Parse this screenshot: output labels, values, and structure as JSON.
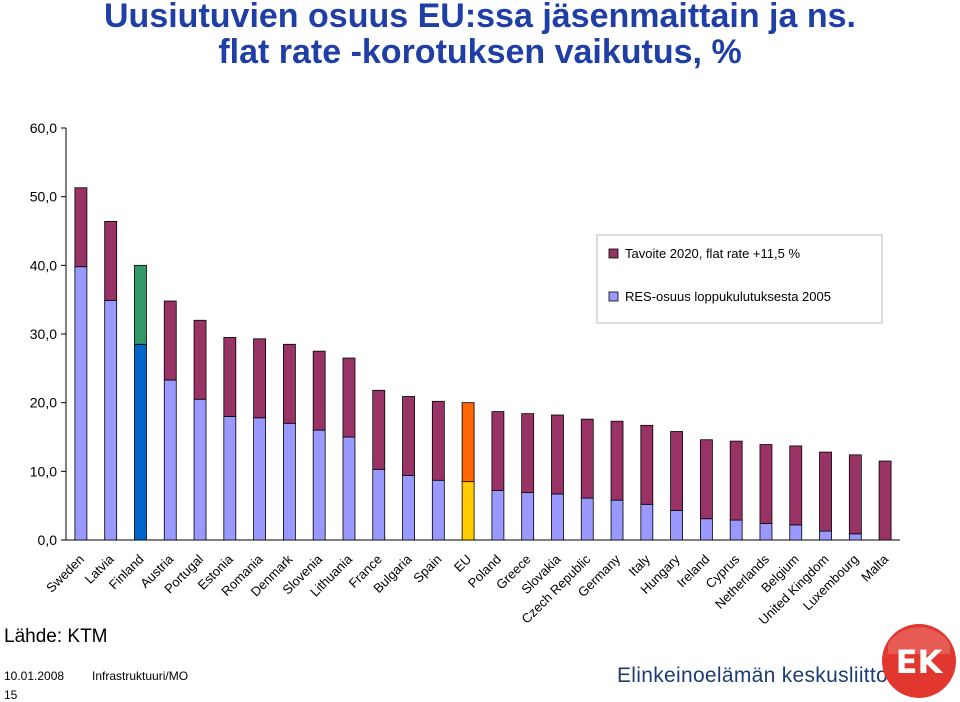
{
  "slide": {
    "title_line1": "Uusiutuvien osuus EU:ssa jäsenmaittain ja ns.",
    "title_line2": "flat rate -korotuksen vaikutus, %",
    "source": "Lähde: KTM",
    "date": "10.01.2008",
    "department": "Infrastruktuuri/MO",
    "page_number": "15",
    "logo_text": "Elinkeinoelämän keskusliitto",
    "logo_mark": "EK"
  },
  "colors": {
    "title": "#1f3fa6",
    "base": "#9999ff",
    "increase": "#993366",
    "finland_base": "#0066cc",
    "finland_increase": "#339966",
    "eu_base": "#ffcc00",
    "eu_increase": "#ff6600",
    "logo_red": "#e1372e",
    "logo_blue": "#1d3b73"
  },
  "chart_data": {
    "type": "bar",
    "stacked": true,
    "title": "Uusiutuvien osuus EU:ssa jäsenmaittain ja ns. flat rate -korotuksen vaikutus, %",
    "categories": [
      "Sweden",
      "Latvia",
      "Finland",
      "Austria",
      "Portugal",
      "Estonia",
      "Romania",
      "Denmark",
      "Slovenia",
      "Lithuania",
      "France",
      "Bulgaria",
      "Spain",
      "EU",
      "Poland",
      "Greece",
      "Slovakia",
      "Czech Republic",
      "Germany",
      "Italy",
      "Hungary",
      "Ireland",
      "Cyprus",
      "Netherlands",
      "Belgium",
      "United Kingdom",
      "Luxembourg",
      "Malta"
    ],
    "series": [
      {
        "name": "RES-osuus loppukulutuksesta 2005",
        "values": [
          39.8,
          34.9,
          28.5,
          23.3,
          20.5,
          18.0,
          17.8,
          17.0,
          16.0,
          15.0,
          10.3,
          9.4,
          8.7,
          8.5,
          7.2,
          6.9,
          6.7,
          6.1,
          5.8,
          5.2,
          4.3,
          3.1,
          2.9,
          2.4,
          2.2,
          1.3,
          0.9,
          0.0
        ]
      },
      {
        "name": "Tavoite 2020, flat rate +11,5 %",
        "values": [
          11.5,
          11.5,
          11.5,
          11.5,
          11.5,
          11.5,
          11.5,
          11.5,
          11.5,
          11.5,
          11.5,
          11.5,
          11.5,
          11.5,
          11.5,
          11.5,
          11.5,
          11.5,
          11.5,
          11.5,
          11.5,
          11.5,
          11.5,
          11.5,
          11.5,
          11.5,
          11.5,
          11.5
        ]
      }
    ],
    "legend": [
      "Tavoite 2020, flat rate +11,5 %",
      "RES-osuus loppukulutuksesta 2005"
    ],
    "legend_position": "top-right",
    "ylim": [
      0,
      60
    ],
    "yticks": [
      "0,0",
      "10,0",
      "20,0",
      "30,0",
      "40,0",
      "50,0",
      "60,0"
    ],
    "grid": false,
    "xlabel": "",
    "ylabel": ""
  }
}
